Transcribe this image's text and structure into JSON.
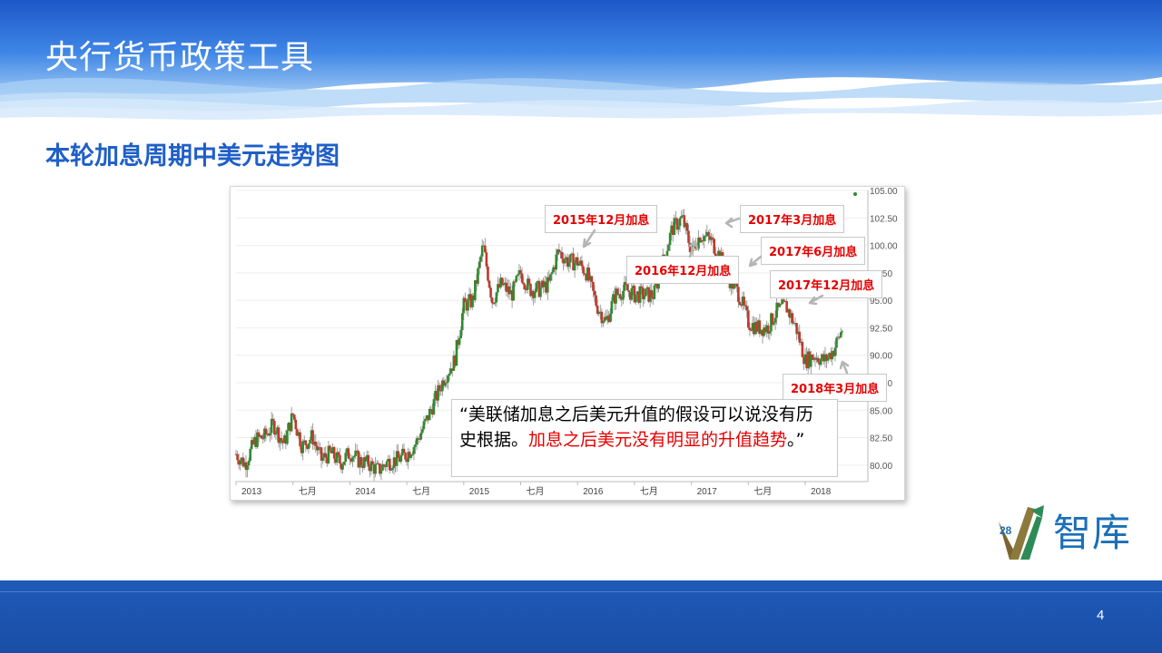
{
  "header": {
    "title": "央行货币政策工具"
  },
  "subtitle": "本轮加息周期中美元走势图",
  "colors": {
    "accent": "#1f5fc8",
    "callout_text": "#e60000",
    "up_candle": "#2e8b2e",
    "down_candle": "#c0392b"
  },
  "callouts": [
    {
      "label": "2015年12月加息"
    },
    {
      "label": "2016年12月加息"
    },
    {
      "label": "2017年3月加息"
    },
    {
      "label": "2017年6月加息"
    },
    {
      "label": "2017年12月加息"
    },
    {
      "label": "2018年3月加息"
    }
  ],
  "quote": {
    "part1": "“美联储加息之后美元升值的假设可以说没有历史根据。",
    "part2": "加息之后美元没有明显的升值趋势",
    "part3": "。”"
  },
  "footer": {
    "page_number": "4"
  },
  "logo": {
    "text": "智库",
    "number": "28",
    "icon": "chart-arrow-logo-icon"
  },
  "chart_data": {
    "type": "candlestick",
    "title": "",
    "xlabel": "",
    "ylabel": "",
    "x_tick_labels": [
      "2013",
      "七月",
      "2014",
      "七月",
      "2015",
      "七月",
      "2016",
      "七月",
      "2017",
      "七月",
      "2018"
    ],
    "y_tick_labels": [
      "105.00",
      "102.50",
      "100.00",
      "97.50",
      "95.00",
      "92.50",
      "90.00",
      "87.50",
      "85.00",
      "82.50",
      "80.00"
    ],
    "ylim": [
      78.5,
      105
    ],
    "grid": true,
    "series": [
      {
        "values": [
          [
            2013.0,
            81.0
          ],
          [
            2013.08,
            80.1
          ],
          [
            2013.17,
            82.3
          ],
          [
            2013.25,
            82.6
          ],
          [
            2013.33,
            83.7
          ],
          [
            2013.42,
            81.9
          ],
          [
            2013.5,
            84.6
          ],
          [
            2013.58,
            81.7
          ],
          [
            2013.67,
            82.6
          ],
          [
            2013.75,
            80.5
          ],
          [
            2013.83,
            81.1
          ],
          [
            2013.92,
            80.2
          ],
          [
            2014.0,
            81.2
          ],
          [
            2014.08,
            80.4
          ],
          [
            2014.17,
            80.1
          ],
          [
            2014.25,
            79.5
          ],
          [
            2014.33,
            80.3
          ],
          [
            2014.42,
            80.5
          ],
          [
            2014.5,
            81.0
          ],
          [
            2014.58,
            82.0
          ],
          [
            2014.67,
            84.0
          ],
          [
            2014.75,
            86.0
          ],
          [
            2014.83,
            88.0
          ],
          [
            2014.92,
            89.5
          ],
          [
            2015.0,
            94.5
          ],
          [
            2015.08,
            95.0
          ],
          [
            2015.17,
            100.0
          ],
          [
            2015.25,
            95.0
          ],
          [
            2015.33,
            96.5
          ],
          [
            2015.42,
            95.5
          ],
          [
            2015.5,
            97.5
          ],
          [
            2015.58,
            96.0
          ],
          [
            2015.67,
            96.0
          ],
          [
            2015.75,
            96.5
          ],
          [
            2015.83,
            99.5
          ],
          [
            2015.92,
            98.5
          ],
          [
            2016.0,
            98.5
          ],
          [
            2016.08,
            97.5
          ],
          [
            2016.17,
            94.5
          ],
          [
            2016.25,
            93.0
          ],
          [
            2016.33,
            95.5
          ],
          [
            2016.42,
            96.0
          ],
          [
            2016.5,
            95.5
          ],
          [
            2016.58,
            95.5
          ],
          [
            2016.67,
            95.5
          ],
          [
            2016.75,
            98.5
          ],
          [
            2016.83,
            101.5
          ],
          [
            2016.92,
            102.5
          ],
          [
            2017.0,
            99.5
          ],
          [
            2017.08,
            101.0
          ],
          [
            2017.17,
            100.5
          ],
          [
            2017.25,
            99.0
          ],
          [
            2017.33,
            97.0
          ],
          [
            2017.42,
            95.5
          ],
          [
            2017.5,
            93.0
          ],
          [
            2017.58,
            92.5
          ],
          [
            2017.67,
            92.5
          ],
          [
            2017.75,
            94.0
          ],
          [
            2017.83,
            94.5
          ],
          [
            2017.92,
            92.5
          ],
          [
            2018.0,
            89.5
          ],
          [
            2018.08,
            90.0
          ],
          [
            2018.17,
            89.5
          ],
          [
            2018.25,
            90.5
          ],
          [
            2018.33,
            92.5
          ]
        ]
      }
    ]
  }
}
